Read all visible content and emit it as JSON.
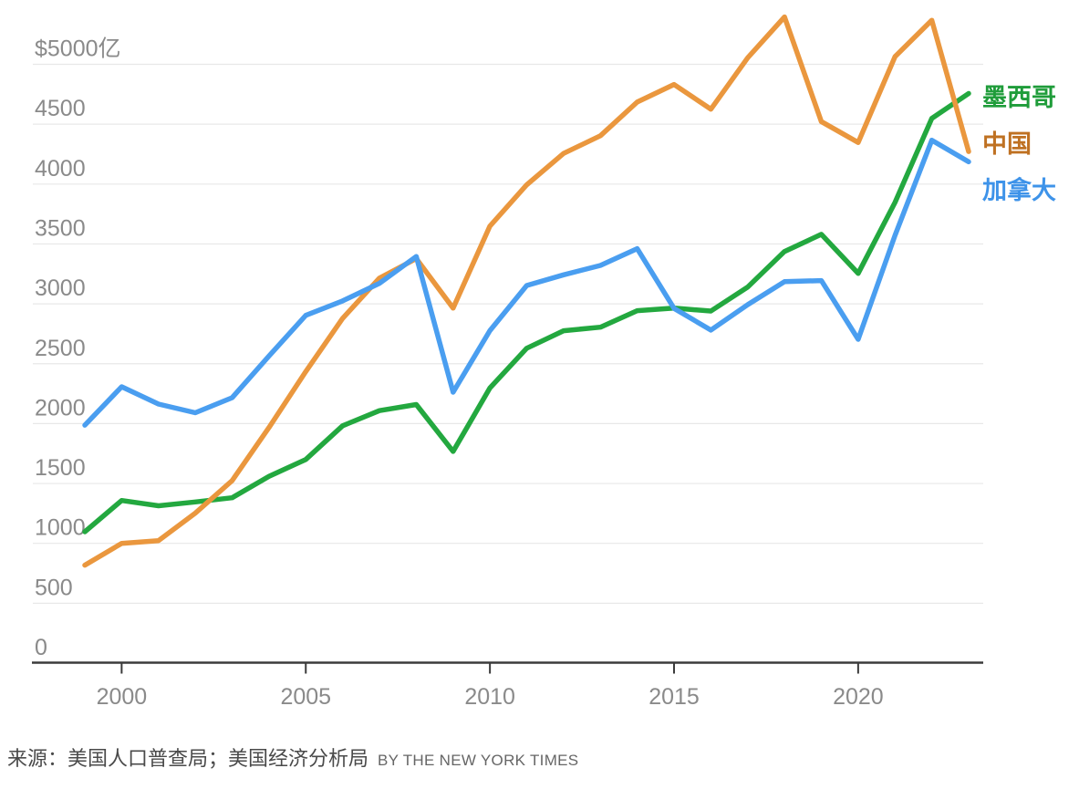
{
  "chart_data": {
    "type": "line",
    "title": "",
    "unit_note": "$5000亿",
    "x_label": "",
    "y_label": "",
    "xlim": [
      1999,
      2023
    ],
    "ylim": [
      0,
      5000
    ],
    "grid": true,
    "legend_position": "right",
    "x": [
      1999,
      2000,
      2001,
      2002,
      2003,
      2004,
      2005,
      2006,
      2007,
      2008,
      2009,
      2010,
      2011,
      2012,
      2013,
      2014,
      2015,
      2016,
      2017,
      2018,
      2019,
      2020,
      2021,
      2022,
      2023
    ],
    "x_ticks": [
      2000,
      2005,
      2010,
      2015,
      2020
    ],
    "y_ticks": [
      {
        "value": 5000,
        "label": "$5000亿"
      },
      {
        "value": 4500,
        "label": "4500"
      },
      {
        "value": 4000,
        "label": "4000"
      },
      {
        "value": 3500,
        "label": "3500"
      },
      {
        "value": 3000,
        "label": "3000"
      },
      {
        "value": 2500,
        "label": "2500"
      },
      {
        "value": 2000,
        "label": "2000"
      },
      {
        "value": 1500,
        "label": "1500"
      },
      {
        "value": 1000,
        "label": "1000"
      },
      {
        "value": 500,
        "label": "500"
      },
      {
        "value": 0,
        "label": "0"
      }
    ],
    "draw_order": [
      "mexico",
      "china",
      "canada"
    ],
    "series": [
      {
        "key": "mexico",
        "name": "墨西哥",
        "color": "#23a83f",
        "values": [
          1097,
          1358,
          1314,
          1346,
          1381,
          1559,
          1701,
          1982,
          2108,
          2159,
          1768,
          2297,
          2629,
          2775,
          2805,
          2943,
          2964,
          2940,
          3140,
          3437,
          3580,
          3254,
          3847,
          4548,
          4756
        ]
      },
      {
        "key": "china",
        "name": "中国",
        "color": "#ea973e",
        "values": [
          818,
          1000,
          1023,
          1252,
          1524,
          1967,
          2435,
          2878,
          3215,
          3378,
          2964,
          3649,
          3994,
          4256,
          4404,
          4685,
          4832,
          4625,
          5055,
          5395,
          4522,
          4347,
          5064,
          5368,
          4272
        ]
      },
      {
        "key": "canada",
        "name": "加拿大",
        "color": "#4a9ef0",
        "values": [
          1987,
          2308,
          2163,
          2091,
          2216,
          2564,
          2904,
          3024,
          3171,
          3395,
          2262,
          2776,
          3153,
          3242,
          3321,
          3461,
          2962,
          2781,
          2993,
          3185,
          3194,
          2704,
          3572,
          4366,
          4186
        ]
      }
    ],
    "axis_colors": {
      "grid": "#e8e8e8",
      "axis": "#3b3b3b",
      "tick_label": "#8a8a8a"
    }
  },
  "legend": {
    "items": [
      {
        "label": "墨西哥",
        "color": "#1f9c3a"
      },
      {
        "label": "中国",
        "color": "#bf7122"
      },
      {
        "label": "加拿大",
        "color": "#3e93e9"
      }
    ]
  },
  "footer": {
    "source": "来源：美国人口普查局；美国经济分析局",
    "byline": "BY THE NEW YORK TIMES"
  }
}
